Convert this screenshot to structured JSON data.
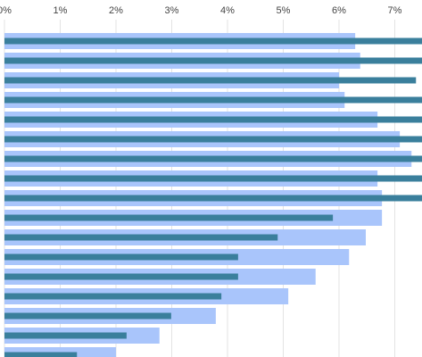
{
  "chart_data": {
    "type": "bar",
    "orientation": "horizontal",
    "xlim": [
      0,
      7.5
    ],
    "xticks": [
      {
        "value": 0,
        "label": "0%"
      },
      {
        "value": 1,
        "label": "1%"
      },
      {
        "value": 2,
        "label": "2%"
      },
      {
        "value": 3,
        "label": "3%"
      },
      {
        "value": 4,
        "label": "4%"
      },
      {
        "value": 5,
        "label": "5%"
      },
      {
        "value": 6,
        "label": "6%"
      },
      {
        "value": 7,
        "label": "7%"
      }
    ],
    "grid": true,
    "series": [
      {
        "color": "#a9c5fb",
        "values": [
          6.29,
          6.38,
          6.0,
          6.1,
          6.69,
          7.09,
          7.3,
          6.69,
          6.77,
          6.77,
          6.48,
          6.18,
          5.58,
          5.09,
          3.79,
          2.78,
          2.0
        ]
      },
      {
        "color": "#3a7f9c",
        "values": [
          7.6,
          7.6,
          7.38,
          7.6,
          7.6,
          7.6,
          7.6,
          7.6,
          7.5,
          5.89,
          4.9,
          4.19,
          4.19,
          3.89,
          2.99,
          2.19,
          1.3
        ]
      }
    ]
  }
}
